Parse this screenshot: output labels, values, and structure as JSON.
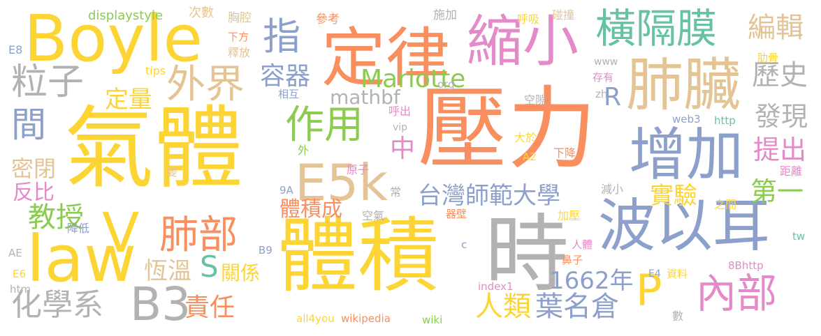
{
  "palette": {
    "yellow": "#fcd535",
    "orange": "#f98e5e",
    "blue": "#8da0cb",
    "green": "#8bcc50",
    "tan": "#e4c494",
    "gray": "#b2b2b2",
    "pink": "#e58ac8",
    "teal": "#66c2a5"
  },
  "words": [
    {
      "text": "壓力",
      "color": "orange"
    },
    {
      "text": "氣體",
      "color": "yellow"
    },
    {
      "text": "體積",
      "color": "yellow"
    },
    {
      "text": "時",
      "color": "gray"
    },
    {
      "text": "定律",
      "color": "orange"
    },
    {
      "text": "Boyle",
      "color": "yellow"
    },
    {
      "text": "肺臟",
      "color": "tan"
    },
    {
      "text": "縮小",
      "color": "pink"
    },
    {
      "text": "波以耳",
      "color": "blue"
    },
    {
      "text": "增加",
      "color": "blue"
    },
    {
      "text": "law",
      "color": "yellow"
    },
    {
      "text": "E5k",
      "color": "tan"
    },
    {
      "text": "B3",
      "color": "gray"
    },
    {
      "text": "橫隔膜",
      "color": "teal"
    },
    {
      "text": "外界",
      "color": "tan"
    },
    {
      "text": "作用",
      "color": "green"
    },
    {
      "text": "肺部",
      "color": "orange"
    },
    {
      "text": "內部",
      "color": "pink"
    },
    {
      "text": "V",
      "color": "yellow"
    },
    {
      "text": "P",
      "color": "yellow"
    },
    {
      "text": "粒子",
      "color": "gray"
    },
    {
      "text": "指",
      "color": "blue"
    },
    {
      "text": "間",
      "color": "blue"
    },
    {
      "text": "Mariotte",
      "color": "green"
    },
    {
      "text": "台灣師範大學",
      "color": "blue"
    },
    {
      "text": "編輯",
      "color": "tan"
    },
    {
      "text": "歷史",
      "color": "gray"
    },
    {
      "text": "發現",
      "color": "gray"
    },
    {
      "text": "提出",
      "color": "pink"
    },
    {
      "text": "化學系",
      "color": "gray"
    },
    {
      "text": "人類",
      "color": "yellow"
    },
    {
      "text": "葉名倉",
      "color": "blue"
    },
    {
      "text": "1662年",
      "color": "blue"
    },
    {
      "text": "容器",
      "color": "blue"
    },
    {
      "text": "mathbf",
      "color": "gray"
    },
    {
      "text": "定量",
      "color": "yellow"
    },
    {
      "text": "教授",
      "color": "green"
    },
    {
      "text": "第一",
      "color": "green"
    },
    {
      "text": "實驗",
      "color": "yellow"
    },
    {
      "text": "責任",
      "color": "orange"
    },
    {
      "text": "恆溫",
      "color": "tan"
    },
    {
      "text": "關係",
      "color": "yellow"
    },
    {
      "text": "S",
      "color": "teal"
    },
    {
      "text": "體積成",
      "color": "orange"
    },
    {
      "text": "密閉",
      "color": "tan"
    },
    {
      "text": "反比",
      "color": "pink"
    },
    {
      "text": "中",
      "color": "pink"
    },
    {
      "text": "R",
      "color": "blue"
    },
    {
      "text": "displaystyle",
      "color": "green"
    },
    {
      "text": "次數",
      "color": "tan"
    },
    {
      "text": "胸腔",
      "color": "tan"
    },
    {
      "text": "參考",
      "color": "orange"
    },
    {
      "text": "施加",
      "color": "gray"
    },
    {
      "text": "呼吸",
      "color": "yellow"
    },
    {
      "text": "碰撞",
      "color": "tan"
    },
    {
      "text": "下方",
      "color": "orange"
    },
    {
      "text": "釋放",
      "color": "tan"
    },
    {
      "text": "E8",
      "color": "blue"
    },
    {
      "text": "tips",
      "color": "yellow"
    },
    {
      "text": "www",
      "color": "gray"
    },
    {
      "text": "肋骨",
      "color": "yellow"
    },
    {
      "text": "存有",
      "color": "pink"
    },
    {
      "text": "相互",
      "color": "blue"
    },
    {
      "text": "org",
      "color": "gray"
    },
    {
      "text": "zh",
      "color": "gray"
    },
    {
      "text": "空隙",
      "color": "gray"
    },
    {
      "text": "呼出",
      "color": "pink"
    },
    {
      "text": "vip",
      "color": "gray"
    },
    {
      "text": "外",
      "color": "green"
    },
    {
      "text": "web3",
      "color": "blue"
    },
    {
      "text": "http",
      "color": "teal"
    },
    {
      "text": "大於",
      "color": "yellow"
    },
    {
      "text": "A2",
      "color": "yellow"
    },
    {
      "text": "下降",
      "color": "orange"
    },
    {
      "text": "原子",
      "color": "pink"
    },
    {
      "text": "變",
      "color": "tan"
    },
    {
      "text": "距離",
      "color": "pink"
    },
    {
      "text": "常",
      "color": "gray"
    },
    {
      "text": "9A",
      "color": "blue"
    },
    {
      "text": "減小",
      "color": "gray"
    },
    {
      "text": "之間",
      "color": "yellow"
    },
    {
      "text": "空氣",
      "color": "gray"
    },
    {
      "text": "器壁",
      "color": "orange"
    },
    {
      "text": "加壓",
      "color": "yellow"
    },
    {
      "text": "tw",
      "color": "teal"
    },
    {
      "text": "降低",
      "color": "blue"
    },
    {
      "text": "AE",
      "color": "gray"
    },
    {
      "text": "B9",
      "color": "blue"
    },
    {
      "text": "c",
      "color": "blue"
    },
    {
      "text": "人體",
      "color": "pink"
    },
    {
      "text": "鼻子",
      "color": "orange"
    },
    {
      "text": "8Bhttp",
      "color": "pink"
    },
    {
      "text": "E6",
      "color": "yellow"
    },
    {
      "text": "htm",
      "color": "gray"
    },
    {
      "text": "E4",
      "color": "blue"
    },
    {
      "text": "資料",
      "color": "yellow"
    },
    {
      "text": "index1",
      "color": "pink"
    },
    {
      "text": "all4you",
      "color": "yellow"
    },
    {
      "text": "wikipedia",
      "color": "orange"
    },
    {
      "text": "wiki",
      "color": "green"
    },
    {
      "text": "數",
      "color": "gray"
    }
  ]
}
